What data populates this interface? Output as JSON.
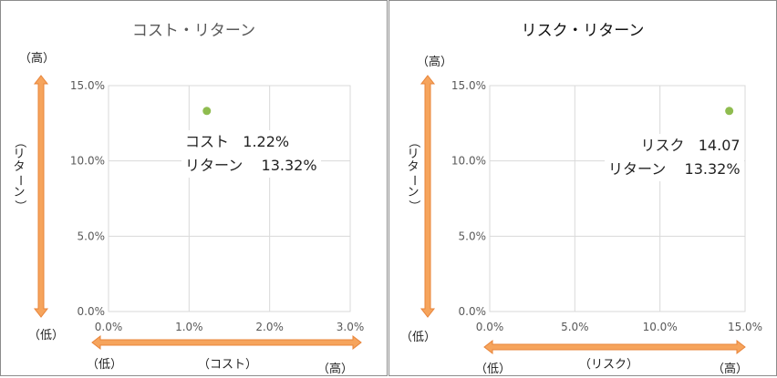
{
  "chart_data": [
    {
      "type": "scatter",
      "title": "コスト・リターン",
      "x": [
        1.22
      ],
      "y": [
        13.32
      ],
      "xlim": [
        0,
        3.0
      ],
      "ylim": [
        0,
        15.0
      ],
      "xticks": [
        "0.0%",
        "1.0%",
        "2.0%",
        "3.0%"
      ],
      "yticks": [
        "0.0%",
        "5.0%",
        "10.0%",
        "15.0%"
      ],
      "grid": true,
      "point_color": "#8fbc4f",
      "annotation": {
        "line1_label": "コスト",
        "line1_value": "1.22%",
        "line2_label": "リターン",
        "line2_value": "13.32%"
      },
      "x_axis_note": {
        "low": "（低）",
        "label": "（コスト）",
        "high": "（高）"
      },
      "y_axis_note": {
        "high": "（高）",
        "label": "（リターン）",
        "low": "（低）"
      }
    },
    {
      "type": "scatter",
      "title": "リスク・リターン",
      "x": [
        14.07
      ],
      "y": [
        13.32
      ],
      "xlim": [
        0,
        15.0
      ],
      "ylim": [
        0,
        15.0
      ],
      "xticks": [
        "0.0%",
        "5.0%",
        "10.0%",
        "15.0%"
      ],
      "yticks": [
        "0.0%",
        "5.0%",
        "10.0%",
        "15.0%"
      ],
      "grid": true,
      "point_color": "#8fbc4f",
      "annotation": {
        "line1_label": "リスク",
        "line1_value": "14.07",
        "line2_label": "リターン",
        "line2_value": "13.32%"
      },
      "x_axis_note": {
        "low": "（低）",
        "label": "（リスク）",
        "high": "（高）"
      },
      "y_axis_note": {
        "high": "（高）",
        "label": "（リターン）",
        "low": "（低）"
      }
    }
  ],
  "colors": {
    "arrow": "#f6a45c",
    "arrow_stroke": "#e8843a",
    "grid": "#d9d9d9"
  }
}
